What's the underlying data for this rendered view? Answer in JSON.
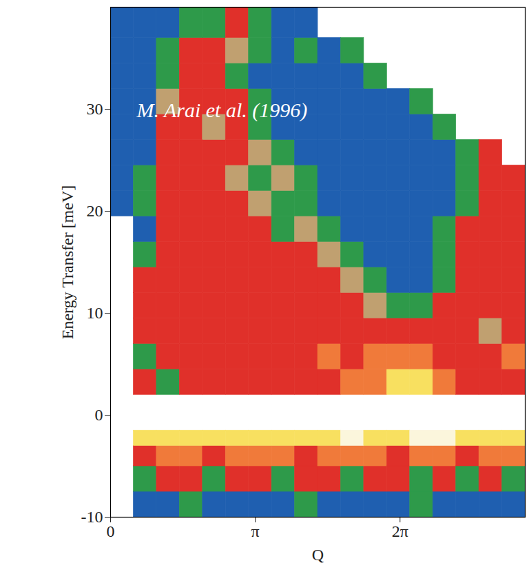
{
  "chart_data": {
    "type": "heatmap",
    "annotation": "M. Arai et al. (1996)",
    "x_label": "Q",
    "y_label": "Energy Transfer [meV]",
    "xlim": [
      0,
      9
    ],
    "ylim": [
      -10,
      40
    ],
    "xticks": [
      0,
      {
        "value": 3.14159,
        "label": "π"
      },
      {
        "value": 6.28319,
        "label": "2π"
      }
    ],
    "yticks": [
      -10,
      0,
      10,
      20,
      30
    ],
    "grid": false,
    "q_edges": [
      0,
      0.5,
      1,
      1.5,
      2,
      2.5,
      3,
      3.5,
      4,
      4.5,
      5,
      5.5,
      6,
      6.5,
      7,
      7.5,
      8,
      8.5,
      9
    ],
    "e_edges": [
      -10,
      -7.5,
      -5,
      -3,
      -1.5,
      2,
      4.5,
      7,
      9.5,
      12,
      14.5,
      17,
      19.5,
      22,
      24.5,
      27,
      29.5,
      32,
      34.5,
      37,
      40
    ],
    "cells": [
      [
        null,
        0,
        0,
        1,
        0,
        0,
        0,
        0,
        1,
        0,
        0,
        0,
        0,
        1,
        0,
        0,
        0,
        0
      ],
      [
        null,
        1,
        3,
        3,
        1,
        3,
        3,
        1,
        3,
        3,
        1,
        3,
        3,
        1,
        3,
        1,
        3,
        1
      ],
      [
        null,
        3,
        4,
        4,
        3,
        4,
        4,
        4,
        3,
        4,
        4,
        4,
        3,
        4,
        4,
        3,
        4,
        4
      ],
      [
        null,
        5,
        5,
        5,
        5,
        5,
        5,
        5,
        5,
        5,
        6,
        5,
        5,
        6,
        6,
        5,
        5,
        5
      ],
      [
        null,
        null,
        null,
        null,
        null,
        null,
        null,
        null,
        null,
        null,
        null,
        null,
        null,
        null,
        null,
        null,
        null,
        null
      ],
      [
        null,
        3,
        1,
        3,
        3,
        3,
        3,
        3,
        3,
        3,
        4,
        4,
        5,
        5,
        4,
        3,
        3,
        3
      ],
      [
        null,
        1,
        3,
        3,
        3,
        3,
        3,
        3,
        3,
        4,
        3,
        4,
        4,
        4,
        3,
        3,
        3,
        4
      ],
      [
        null,
        3,
        3,
        3,
        3,
        3,
        3,
        3,
        3,
        3,
        3,
        3,
        3,
        3,
        3,
        3,
        2,
        3
      ],
      [
        null,
        3,
        3,
        3,
        3,
        3,
        3,
        3,
        3,
        3,
        3,
        2,
        1,
        1,
        3,
        3,
        3,
        3
      ],
      [
        null,
        3,
        3,
        3,
        3,
        3,
        3,
        3,
        3,
        3,
        2,
        1,
        0,
        0,
        1,
        3,
        3,
        3
      ],
      [
        null,
        1,
        3,
        3,
        3,
        3,
        3,
        3,
        3,
        2,
        1,
        0,
        0,
        0,
        1,
        3,
        3,
        3
      ],
      [
        null,
        0,
        3,
        3,
        3,
        3,
        3,
        1,
        2,
        1,
        0,
        0,
        0,
        0,
        1,
        3,
        3,
        3
      ],
      [
        0,
        1,
        3,
        3,
        3,
        3,
        2,
        1,
        1,
        0,
        0,
        0,
        0,
        0,
        0,
        1,
        3,
        3
      ],
      [
        0,
        1,
        3,
        3,
        3,
        2,
        1,
        2,
        1,
        0,
        0,
        0,
        0,
        0,
        0,
        1,
        3,
        3
      ],
      [
        0,
        0,
        3,
        3,
        3,
        3,
        2,
        1,
        0,
        0,
        0,
        0,
        0,
        0,
        0,
        1,
        3,
        null
      ],
      [
        0,
        0,
        3,
        3,
        2,
        3,
        1,
        0,
        0,
        0,
        0,
        0,
        0,
        0,
        1,
        null,
        null,
        null
      ],
      [
        0,
        0,
        2,
        3,
        3,
        3,
        1,
        0,
        0,
        0,
        0,
        0,
        0,
        1,
        null,
        null,
        null,
        null
      ],
      [
        0,
        0,
        1,
        3,
        3,
        1,
        0,
        0,
        0,
        0,
        0,
        1,
        null,
        null,
        null,
        null,
        null,
        null
      ],
      [
        0,
        0,
        1,
        3,
        3,
        2,
        1,
        0,
        1,
        0,
        1,
        null,
        null,
        null,
        null,
        null,
        null,
        null
      ],
      [
        0,
        0,
        0,
        1,
        1,
        3,
        1,
        0,
        0,
        null,
        null,
        null,
        null,
        null,
        null,
        null,
        null,
        null
      ]
    ],
    "levels": [
      0,
      1,
      2,
      3,
      4,
      5,
      6
    ],
    "colors": [
      "#1f5fb0",
      "#2e9a4a",
      "#c0a070",
      "#e0302a",
      "#f07a3a",
      "#f8e060",
      "#fbf6dc"
    ]
  }
}
